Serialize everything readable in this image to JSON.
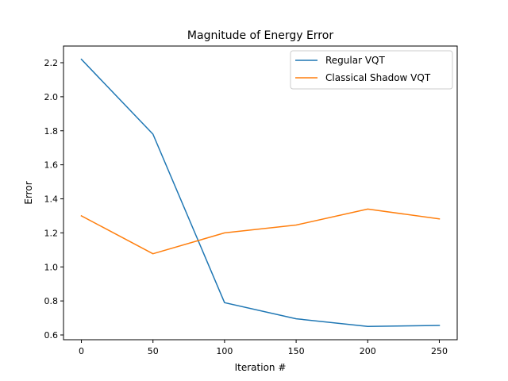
{
  "chart_data": {
    "type": "line",
    "title": "Magnitude of Energy Error",
    "xlabel": "Iteration #",
    "ylabel": "Error",
    "xlim": [
      -12.5,
      262.5
    ],
    "ylim": [
      0.572,
      2.298
    ],
    "xticks": [
      0,
      50,
      100,
      150,
      200,
      250
    ],
    "yticks": [
      0.6,
      0.8,
      1.0,
      1.2,
      1.4,
      1.6,
      1.8,
      2.0,
      2.2
    ],
    "grid": false,
    "legend_position": "top-right",
    "x": [
      0,
      50,
      100,
      150,
      200,
      250
    ],
    "series": [
      {
        "name": "Regular VQT",
        "color": "#1f77b4",
        "values": [
          2.22,
          1.78,
          0.79,
          0.695,
          0.65,
          0.656
        ]
      },
      {
        "name": "Classical Shadow VQT",
        "color": "#ff7f0e",
        "values": [
          1.3,
          1.077,
          1.2,
          1.246,
          1.34,
          1.282
        ]
      }
    ]
  }
}
